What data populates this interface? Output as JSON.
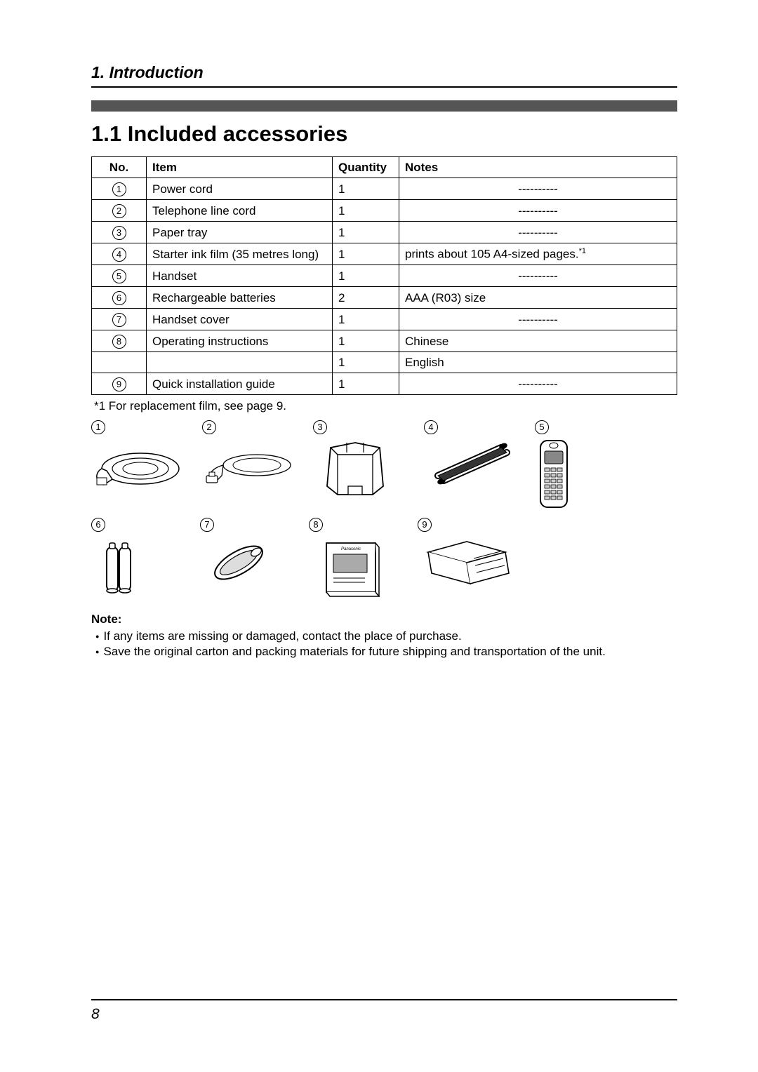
{
  "chapter_title": "1. Introduction",
  "section_title": "1.1 Included accessories",
  "table": {
    "headers": {
      "no": "No.",
      "item": "Item",
      "qty": "Quantity",
      "notes": "Notes"
    },
    "rows": [
      {
        "no": "1",
        "item": "Power cord",
        "qty": "1",
        "notes": "----------",
        "notes_center": true
      },
      {
        "no": "2",
        "item": "Telephone line cord",
        "qty": "1",
        "notes": "----------",
        "notes_center": true
      },
      {
        "no": "3",
        "item": "Paper tray",
        "qty": "1",
        "notes": "----------",
        "notes_center": true
      },
      {
        "no": "4",
        "item": "Starter ink film (35 metres long)",
        "qty": "1",
        "notes": "prints about 105 A4-sized pages.",
        "sup": "*1"
      },
      {
        "no": "5",
        "item": "Handset",
        "qty": "1",
        "notes": "----------",
        "notes_center": true
      },
      {
        "no": "6",
        "item": "Rechargeable batteries",
        "qty": "2",
        "notes": "AAA (R03) size"
      },
      {
        "no": "7",
        "item": "Handset cover",
        "qty": "1",
        "notes": "----------",
        "notes_center": true
      },
      {
        "no": "8",
        "item": "Operating instructions",
        "qty": "1",
        "notes": "Chinese"
      },
      {
        "no": "",
        "item": "",
        "qty": "1",
        "notes": "English",
        "merge_left": true
      },
      {
        "no": "9",
        "item": "Quick installation guide",
        "qty": "1",
        "notes": "----------",
        "notes_center": true
      }
    ]
  },
  "footnote": "*1  For replacement film, see page 9.",
  "grid_labels": {
    "row1": [
      "1",
      "2",
      "3",
      "4",
      "5"
    ],
    "row2": [
      "6",
      "7",
      "8",
      "9"
    ]
  },
  "note_heading": "Note:",
  "note_items": [
    "If any items are missing or damaged, contact the place of purchase.",
    "Save the original carton and packing materials for future shipping and transportation of the unit."
  ],
  "page_number": "8",
  "colors": {
    "text": "#000000",
    "bar": "#555555",
    "bg": "#ffffff"
  },
  "fonts": {
    "chapter_title_pt": 17,
    "section_title_pt": 23,
    "body_pt": 13
  }
}
